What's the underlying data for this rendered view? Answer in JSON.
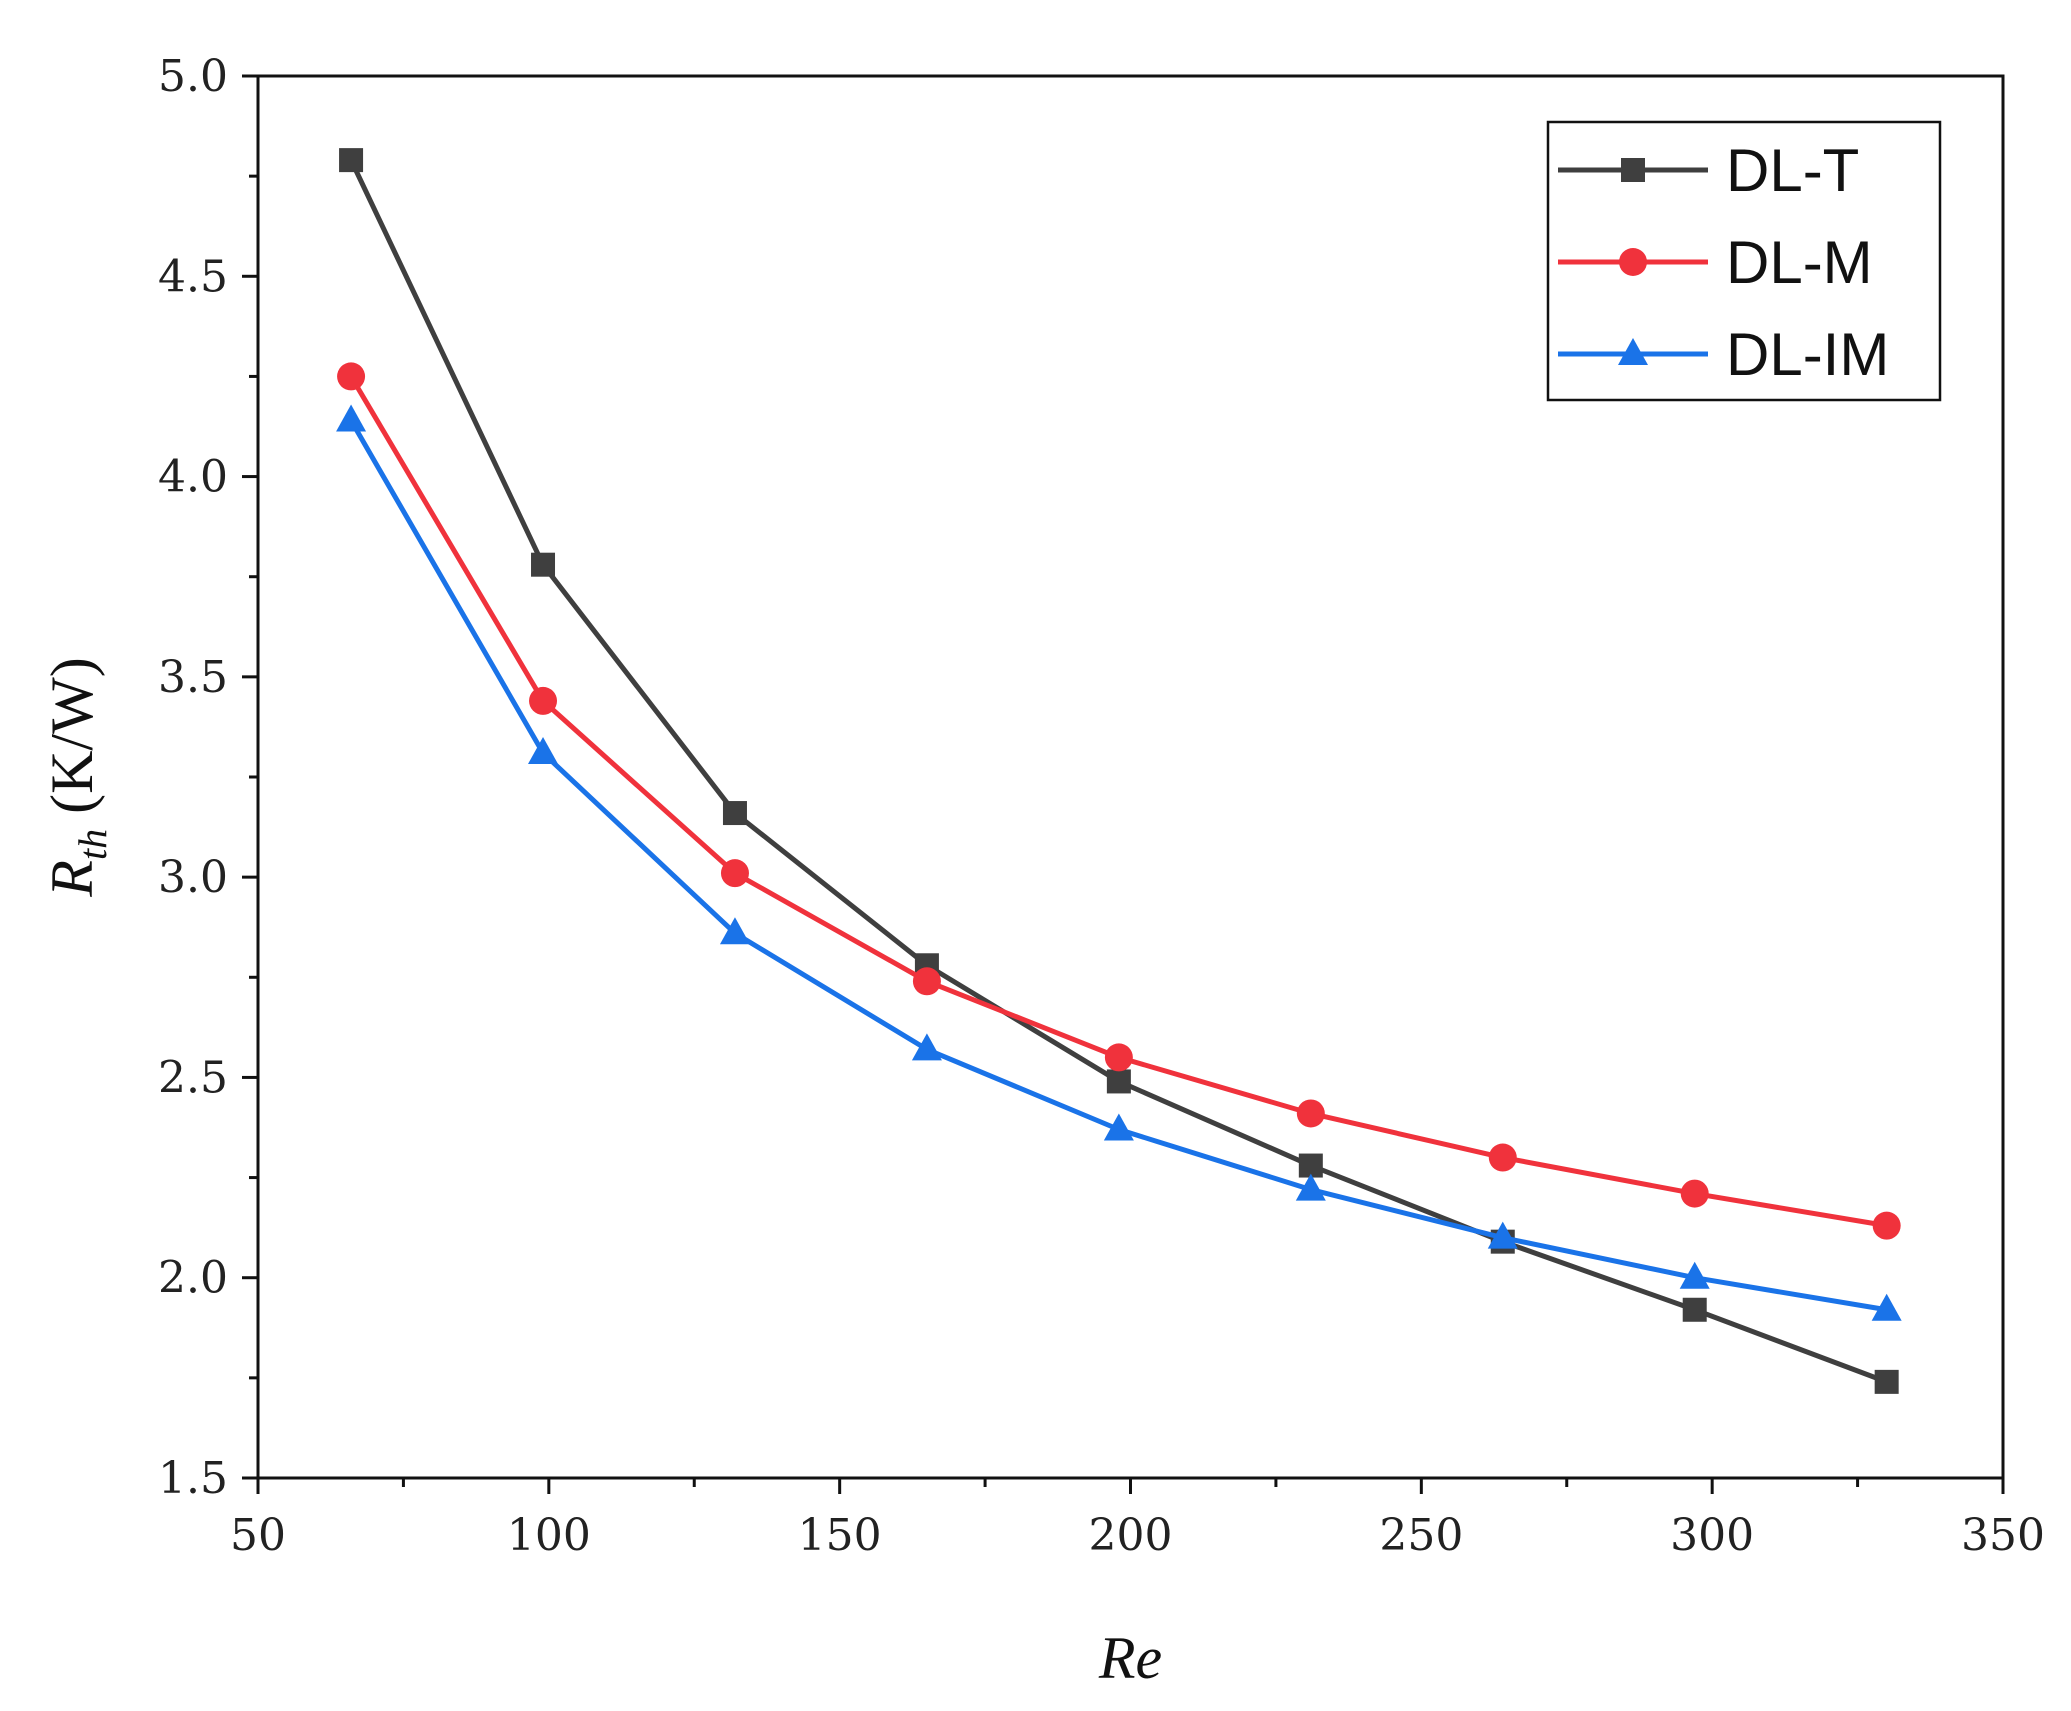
{
  "chart_data": {
    "type": "line",
    "title": "",
    "xlabel": "Re",
    "ylabel": {
      "main": "R",
      "sub": "th",
      "unit": " (K/W)"
    },
    "xlim": [
      50,
      350
    ],
    "ylim": [
      1.5,
      5.0
    ],
    "x_ticks": [
      50,
      100,
      150,
      200,
      250,
      300,
      350
    ],
    "y_ticks": [
      1.5,
      2.0,
      2.5,
      3.0,
      3.5,
      4.0,
      4.5,
      5.0
    ],
    "y_tick_labels": [
      "1.5",
      "2.0",
      "2.5",
      "3.0",
      "3.5",
      "4.0",
      "4.5",
      "5.0"
    ],
    "x": [
      66,
      99,
      132,
      165,
      198,
      231,
      264,
      297,
      330
    ],
    "series": [
      {
        "name": "DL-T",
        "color": "#3f3f3f",
        "marker": "square",
        "values": [
          4.79,
          3.78,
          3.16,
          2.78,
          2.49,
          2.28,
          2.09,
          1.92,
          1.74
        ]
      },
      {
        "name": "DL-M",
        "color": "#f0323c",
        "marker": "circle",
        "values": [
          4.25,
          3.44,
          3.01,
          2.74,
          2.55,
          2.41,
          2.3,
          2.21,
          2.13
        ]
      },
      {
        "name": "DL-IM",
        "color": "#1a73e8",
        "marker": "triangle",
        "values": [
          4.14,
          3.31,
          2.86,
          2.57,
          2.37,
          2.22,
          2.1,
          2.0,
          1.92
        ]
      }
    ],
    "legend_position": "top-right",
    "grid": false
  }
}
